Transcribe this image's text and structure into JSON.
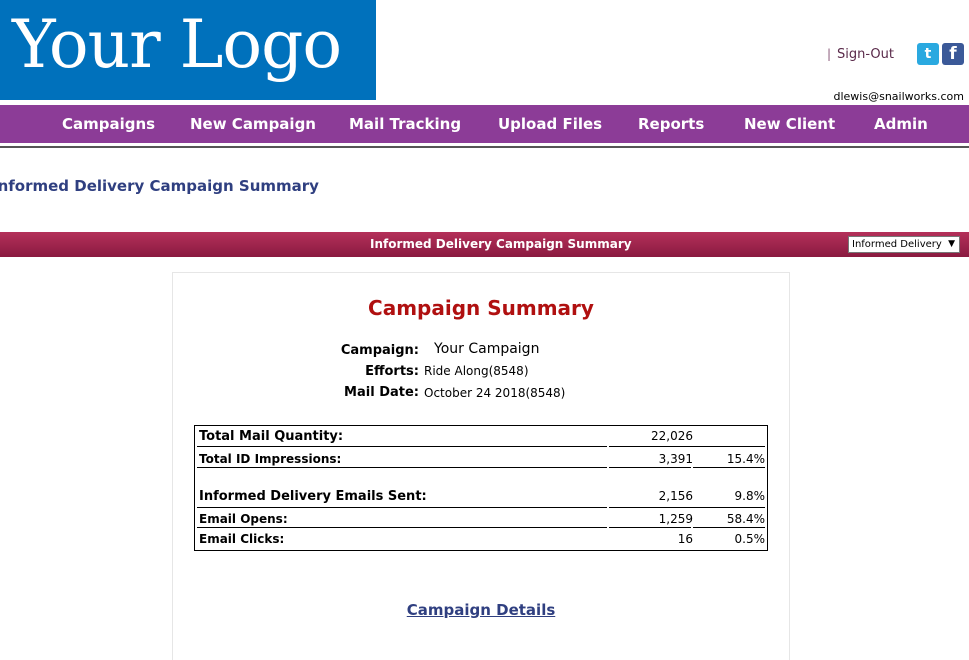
{
  "brand": {
    "logo_text": "Your Logo"
  },
  "header": {
    "separator": "|",
    "sign_out": "Sign-Out",
    "user_email": "dlewis@snailworks.com",
    "social": [
      {
        "icon": "twitter-icon",
        "glyph": "t",
        "color": "#2aa9e0"
      },
      {
        "icon": "facebook-icon",
        "glyph": "f",
        "color": "#3b5998"
      }
    ]
  },
  "nav": {
    "items": [
      {
        "label": "Campaigns"
      },
      {
        "label": "New Campaign"
      },
      {
        "label": "Mail Tracking"
      },
      {
        "label": "Upload Files"
      },
      {
        "label": "Reports"
      },
      {
        "label": "New Client"
      },
      {
        "label": "Admin"
      }
    ],
    "color": "#8c3c97"
  },
  "page": {
    "title": "Informed Delivery Campaign Summary"
  },
  "banner": {
    "title": "Informed Delivery Campaign Summary",
    "report_select": {
      "value": "Informed Delivery",
      "arrow": "▼"
    },
    "color": "#a3234c"
  },
  "summary": {
    "title": "Campaign Summary",
    "campaign_label": "Campaign:",
    "campaign_value": "Your Campaign",
    "efforts_label": "Efforts:",
    "efforts_value": "Ride Along(8548)",
    "mail_date_label": "Mail Date:",
    "mail_date_value": "October 24 2018(8548)"
  },
  "stats": {
    "total_mail_quantity": {
      "label": "Total Mail Quantity:",
      "value": "22,026",
      "pct": ""
    },
    "total_id_impressions": {
      "label": "Total ID Impressions:",
      "value": "3,391",
      "pct": "15.4%"
    },
    "emails_sent": {
      "label": "Informed Delivery Emails Sent:",
      "value": "2,156",
      "pct": "9.8%"
    },
    "email_opens": {
      "label": "Email Opens:",
      "value": "1,259",
      "pct": "58.4%"
    },
    "email_clicks": {
      "label": "Email Clicks:",
      "value": "16",
      "pct": "0.5%"
    }
  },
  "links": {
    "campaign_details": "Campaign Details"
  }
}
